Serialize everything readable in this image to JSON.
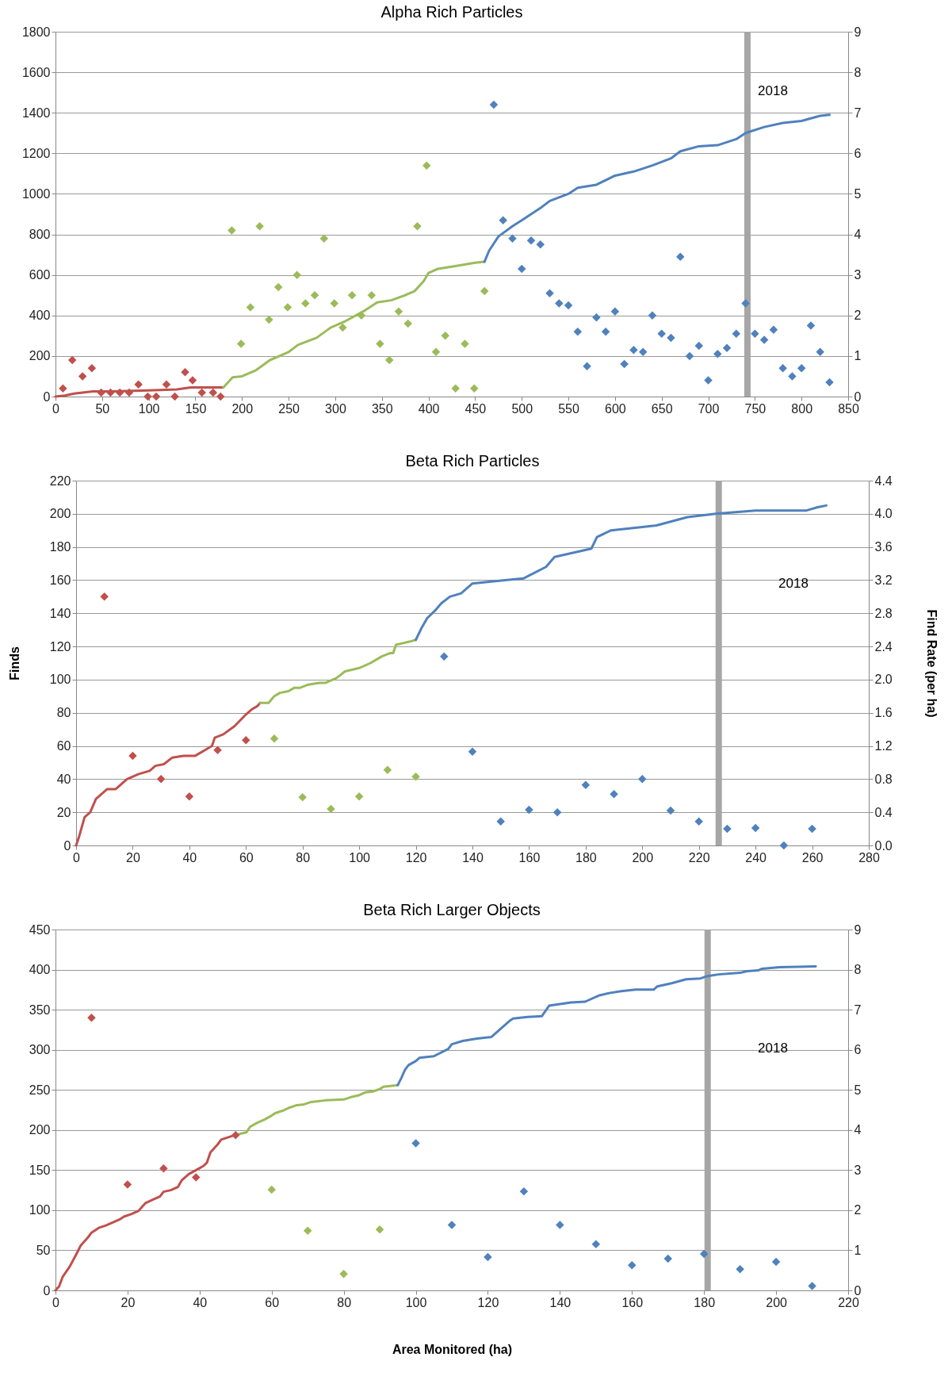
{
  "chart_data": [
    {
      "type": "line",
      "title": "Alpha Rich Particles",
      "xlim": [
        0,
        850
      ],
      "xticks": [
        0,
        50,
        100,
        150,
        200,
        250,
        300,
        350,
        400,
        450,
        500,
        550,
        600,
        650,
        700,
        750,
        800,
        850
      ],
      "ylim": [
        0,
        1800
      ],
      "yticks": [
        0,
        200,
        400,
        600,
        800,
        1000,
        1200,
        1400,
        1600,
        1800
      ],
      "y2lim": [
        0,
        9
      ],
      "y2ticks": [
        0,
        1,
        2,
        3,
        4,
        5,
        6,
        7,
        8,
        9
      ],
      "grid": "y",
      "ref_lines": [
        {
          "axis": "x",
          "value": 742,
          "color": "#a6a6a6"
        }
      ],
      "annotations": [
        "2018"
      ],
      "series": [
        {
          "type": "line",
          "color": "#c0504d",
          "x": [
            0,
            10,
            20,
            40,
            60,
            100,
            130,
            145,
            180
          ],
          "values": [
            0,
            5,
            15,
            25,
            25,
            30,
            35,
            45,
            45
          ]
        },
        {
          "type": "line",
          "color": "#9bbb59",
          "x": [
            180,
            190,
            200,
            215,
            230,
            250,
            260,
            280,
            295,
            310,
            330,
            345,
            360,
            375,
            385,
            395,
            400,
            410,
            430,
            450,
            460
          ],
          "values": [
            45,
            95,
            100,
            130,
            180,
            220,
            255,
            290,
            340,
            370,
            420,
            465,
            475,
            500,
            520,
            570,
            610,
            630,
            645,
            660,
            665
          ]
        },
        {
          "type": "line",
          "color": "#4f81bd",
          "x": [
            460,
            465,
            475,
            490,
            500,
            520,
            530,
            550,
            560,
            580,
            600,
            620,
            640,
            660,
            670,
            690,
            710,
            730,
            740,
            760,
            780,
            800,
            820,
            830
          ],
          "values": [
            665,
            720,
            790,
            840,
            870,
            930,
            965,
            1000,
            1030,
            1045,
            1090,
            1110,
            1140,
            1175,
            1210,
            1235,
            1240,
            1270,
            1300,
            1330,
            1350,
            1360,
            1385,
            1390
          ]
        },
        {
          "type": "scatter",
          "axis": "y2",
          "marker": "diamond",
          "color": "#c0504d",
          "x": [
            8,
            18,
            29,
            39,
            49,
            59,
            69,
            79,
            89,
            99,
            108,
            119,
            128,
            139,
            147,
            157,
            169,
            177
          ],
          "values": [
            0.2,
            0.9,
            0.5,
            0.7,
            0.1,
            0.1,
            0.1,
            0.1,
            0.3,
            0.0,
            0.0,
            0.3,
            0.0,
            0.6,
            0.4,
            0.1,
            0.1,
            0.0
          ]
        },
        {
          "type": "scatter",
          "axis": "y2",
          "marker": "diamond",
          "color": "#9bbb59",
          "x": [
            189,
            199,
            209,
            219,
            229,
            239,
            249,
            259,
            268,
            278,
            288,
            299,
            308,
            318,
            328,
            339,
            348,
            358,
            368,
            378,
            388,
            398,
            408,
            418,
            429,
            439,
            449,
            460
          ],
          "values": [
            4.1,
            1.3,
            2.2,
            4.2,
            1.9,
            2.7,
            2.2,
            3.0,
            2.3,
            2.5,
            3.9,
            2.3,
            1.7,
            2.5,
            2.0,
            2.5,
            1.3,
            0.9,
            2.1,
            1.8,
            4.2,
            5.7,
            1.1,
            1.5,
            0.2,
            1.3,
            0.2,
            2.6
          ]
        },
        {
          "type": "scatter",
          "axis": "y2",
          "marker": "diamond",
          "color": "#4f81bd",
          "x": [
            470,
            480,
            490,
            500,
            510,
            520,
            530,
            540,
            550,
            560,
            570,
            580,
            590,
            600,
            610,
            620,
            630,
            640,
            650,
            660,
            670,
            680,
            690,
            700,
            710,
            720,
            730,
            740,
            750,
            760,
            770,
            780,
            790,
            800,
            810,
            820,
            830
          ],
          "values": [
            7.2,
            4.35,
            3.9,
            3.15,
            3.85,
            3.75,
            2.55,
            2.3,
            2.25,
            1.6,
            0.75,
            1.95,
            1.6,
            2.1,
            0.8,
            1.15,
            1.1,
            2.0,
            1.55,
            1.45,
            3.45,
            1.0,
            1.25,
            0.4,
            1.05,
            1.2,
            1.55,
            2.3,
            1.55,
            1.4,
            1.65,
            0.7,
            0.5,
            0.7,
            1.75,
            1.1,
            0.35
          ]
        }
      ]
    },
    {
      "type": "line",
      "title": "Beta Rich Particles",
      "ylabel": "Finds",
      "y2label": "Find Rate (per ha)",
      "xlim": [
        0,
        280
      ],
      "xticks": [
        0,
        20,
        40,
        60,
        80,
        100,
        120,
        140,
        160,
        180,
        200,
        220,
        240,
        260,
        280
      ],
      "ylim": [
        0,
        220
      ],
      "yticks": [
        0,
        20,
        40,
        60,
        80,
        100,
        120,
        140,
        160,
        180,
        200,
        220
      ],
      "y2lim": [
        0,
        4.4
      ],
      "y2ticks": [
        {
          "value": 0,
          "label": "0.0"
        },
        0.4,
        0.8,
        1.2,
        1.6,
        {
          "value": 2,
          "label": "2.0"
        },
        2.4,
        2.8,
        3.2,
        3.6,
        {
          "value": 4,
          "label": "4.0"
        },
        4.4
      ],
      "grid": "y",
      "ref_lines": [
        {
          "axis": "x",
          "value": 227,
          "color": "#a6a6a6"
        }
      ],
      "annotations": [
        "2018"
      ],
      "series": [
        {
          "type": "line",
          "color": "#c0504d",
          "x": [
            0,
            1,
            3,
            5,
            7,
            9,
            11,
            14,
            16,
            18,
            22,
            26,
            28,
            31,
            34,
            38,
            42,
            46,
            48,
            49,
            52,
            56,
            60,
            62,
            64,
            65
          ],
          "values": [
            0,
            5,
            17,
            20,
            28,
            31,
            34,
            34,
            37,
            40,
            43,
            45,
            48,
            49,
            53,
            54,
            54,
            58,
            60,
            65,
            67,
            72,
            79,
            82,
            84,
            86
          ]
        },
        {
          "type": "line",
          "color": "#9bbb59",
          "x": [
            65,
            68,
            70,
            72,
            75,
            77,
            79,
            82,
            86,
            88,
            92,
            95,
            100,
            104,
            108,
            111,
            112,
            113,
            118,
            120
          ],
          "values": [
            86,
            86,
            90,
            92,
            93,
            95,
            95,
            97,
            98,
            98,
            101,
            105,
            107,
            110,
            114,
            116,
            116,
            121,
            123,
            124
          ]
        },
        {
          "type": "line",
          "color": "#4f81bd",
          "x": [
            120,
            122,
            124,
            127,
            129,
            132,
            136,
            140,
            146,
            158,
            166,
            169,
            182,
            184,
            189,
            200,
            205,
            216,
            226,
            240,
            258,
            262,
            265
          ],
          "values": [
            124,
            131,
            137,
            142,
            146,
            150,
            152,
            158,
            159,
            161,
            168,
            174,
            179,
            186,
            190,
            192,
            193,
            198,
            200,
            202,
            202,
            204,
            205
          ]
        },
        {
          "type": "scatter",
          "axis": "y2",
          "marker": "diamond",
          "color": "#c0504d",
          "x": [
            10,
            20,
            30,
            40,
            50,
            60
          ],
          "values": [
            3.0,
            1.08,
            0.8,
            0.59,
            1.15,
            1.27
          ]
        },
        {
          "type": "scatter",
          "axis": "y2",
          "marker": "diamond",
          "color": "#9bbb59",
          "x": [
            70,
            80,
            90,
            100,
            110,
            120
          ],
          "values": [
            1.29,
            0.58,
            0.44,
            0.59,
            0.91,
            0.83
          ]
        },
        {
          "type": "scatter",
          "axis": "y2",
          "marker": "diamond",
          "color": "#4f81bd",
          "x": [
            130,
            140,
            150,
            160,
            170,
            180,
            190,
            200,
            210,
            220,
            230,
            240,
            250,
            260
          ],
          "values": [
            2.28,
            1.13,
            0.29,
            0.43,
            0.4,
            0.73,
            0.62,
            0.8,
            0.42,
            0.29,
            0.2,
            0.21,
            0.0,
            0.2
          ]
        }
      ]
    },
    {
      "type": "line",
      "title": "Beta Rich Larger Objects",
      "xlabel": "Area Monitored (ha)",
      "xlim": [
        0,
        220
      ],
      "xticks": [
        0,
        20,
        40,
        60,
        80,
        100,
        120,
        140,
        160,
        180,
        200,
        220
      ],
      "ylim": [
        0,
        450
      ],
      "yticks": [
        0,
        50,
        100,
        150,
        200,
        250,
        300,
        350,
        400,
        450
      ],
      "y2lim": [
        0,
        9
      ],
      "y2ticks": [
        0,
        1,
        2,
        3,
        4,
        5,
        6,
        7,
        8,
        9
      ],
      "grid": "y",
      "ref_lines": [
        {
          "axis": "x",
          "value": 181,
          "color": "#a6a6a6"
        }
      ],
      "annotations": [
        "2018"
      ],
      "series": [
        {
          "type": "line",
          "color": "#c0504d",
          "x": [
            0,
            1,
            2,
            4,
            6,
            7,
            9,
            10,
            12,
            14,
            16,
            18,
            19,
            21,
            23,
            25,
            27,
            29,
            30,
            32,
            34,
            35,
            37,
            39,
            41,
            42,
            43,
            45,
            46,
            48,
            50
          ],
          "values": [
            0,
            5,
            17,
            30,
            47,
            56,
            66,
            72,
            78,
            81,
            85,
            89,
            92,
            95,
            99,
            109,
            113,
            117,
            123,
            125,
            129,
            137,
            145,
            150,
            155,
            159,
            172,
            182,
            188,
            191,
            194
          ]
        },
        {
          "type": "line",
          "color": "#9bbb59",
          "x": [
            50,
            53,
            54,
            56,
            58,
            60,
            61,
            63,
            65,
            67,
            69,
            71,
            75,
            80,
            82,
            84,
            86,
            88,
            90,
            91,
            95
          ],
          "values": [
            194,
            197,
            204,
            209,
            213,
            218,
            221,
            224,
            228,
            231,
            232,
            235,
            237,
            238,
            241,
            243,
            247,
            248,
            251,
            254,
            256
          ]
        },
        {
          "type": "line",
          "color": "#4f81bd",
          "x": [
            95,
            96,
            97,
            98,
            100,
            101,
            105,
            109,
            110,
            113,
            117,
            121,
            123,
            126,
            127,
            131,
            135,
            137,
            140,
            143,
            147,
            151,
            154,
            157,
            161,
            166,
            167,
            171,
            175,
            179,
            181,
            184,
            190,
            192,
            195,
            196,
            201,
            211
          ],
          "values": [
            256,
            265,
            275,
            281,
            286,
            290,
            292,
            301,
            307,
            311,
            314,
            316,
            324,
            336,
            339,
            341,
            342,
            355,
            357,
            359,
            360,
            368,
            371,
            373,
            375,
            375,
            379,
            383,
            388,
            389,
            392,
            394,
            396,
            398,
            399,
            401,
            403,
            404
          ]
        },
        {
          "type": "scatter",
          "axis": "y2",
          "marker": "diamond",
          "color": "#c0504d",
          "x": [
            10,
            20,
            30,
            39,
            50
          ],
          "values": [
            6.8,
            2.64,
            3.04,
            2.82,
            3.87
          ]
        },
        {
          "type": "scatter",
          "axis": "y2",
          "marker": "diamond",
          "color": "#9bbb59",
          "x": [
            60,
            70,
            80,
            90
          ],
          "values": [
            2.51,
            1.49,
            0.41,
            1.52
          ]
        },
        {
          "type": "scatter",
          "axis": "y2",
          "marker": "diamond",
          "color": "#4f81bd",
          "x": [
            100,
            110,
            120,
            130,
            140,
            150,
            160,
            170,
            180,
            190,
            200,
            210
          ],
          "values": [
            3.67,
            1.63,
            0.83,
            2.47,
            1.63,
            1.15,
            0.63,
            0.79,
            0.91,
            0.53,
            0.71,
            0.11
          ]
        }
      ]
    }
  ]
}
